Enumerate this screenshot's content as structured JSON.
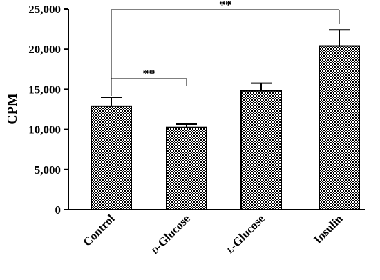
{
  "chart_data": {
    "type": "bar",
    "ylabel": "CPM",
    "xlabel": "",
    "ylim": [
      0,
      25000
    ],
    "yticks": [
      0,
      5000,
      10000,
      15000,
      20000,
      25000
    ],
    "ytick_labels": [
      "0",
      "5,000",
      "10,000",
      "15,000",
      "20,000",
      "25,000"
    ],
    "categories": [
      {
        "prefix": "",
        "main": "Control"
      },
      {
        "prefix": "D",
        "main": "-Glucose"
      },
      {
        "prefix": "L",
        "main": "-Glucose"
      },
      {
        "prefix": "",
        "main": "Insulin"
      }
    ],
    "values": [
      12900,
      10250,
      14800,
      20400
    ],
    "errors": [
      1100,
      400,
      950,
      2000
    ],
    "pattern": "checkerboard",
    "bar_fill": "#000000",
    "bar_background": "#ffffff",
    "significance": [
      {
        "from": 0,
        "to": 1,
        "label": "**"
      },
      {
        "from": 0,
        "to": 3,
        "label": "**"
      }
    ]
  }
}
